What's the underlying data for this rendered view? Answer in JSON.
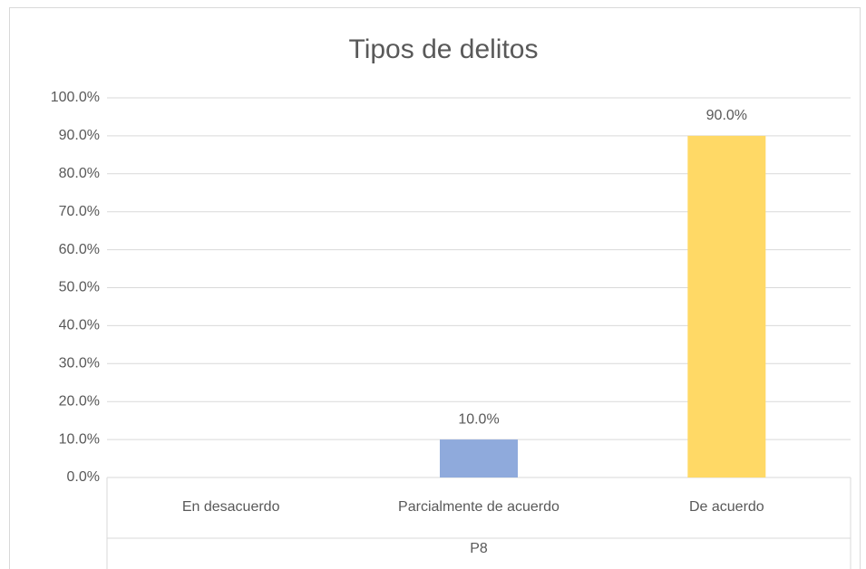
{
  "chart_data": {
    "type": "bar",
    "title": "Tipos de delitos",
    "categories": [
      "En desacuerdo",
      "Parcialmente de acuerdo",
      "De acuerdo"
    ],
    "values": [
      0,
      10,
      90
    ],
    "value_labels": [
      null,
      "10.0%",
      "90.0%"
    ],
    "colors": [
      null,
      "#8faadc",
      "#ffd966"
    ],
    "x_group_label": "P8",
    "ylim": [
      0,
      100
    ],
    "yticks": [
      {
        "value": 0,
        "label": "0.0%"
      },
      {
        "value": 10,
        "label": "10.0%"
      },
      {
        "value": 20,
        "label": "20.0%"
      },
      {
        "value": 30,
        "label": "30.0%"
      },
      {
        "value": 40,
        "label": "40.0%"
      },
      {
        "value": 50,
        "label": "50.0%"
      },
      {
        "value": 60,
        "label": "60.0%"
      },
      {
        "value": 70,
        "label": "70.0%"
      },
      {
        "value": 80,
        "label": "80.0%"
      },
      {
        "value": 90,
        "label": "90.0%"
      },
      {
        "value": 100,
        "label": "100.0%"
      }
    ],
    "grid": true
  }
}
